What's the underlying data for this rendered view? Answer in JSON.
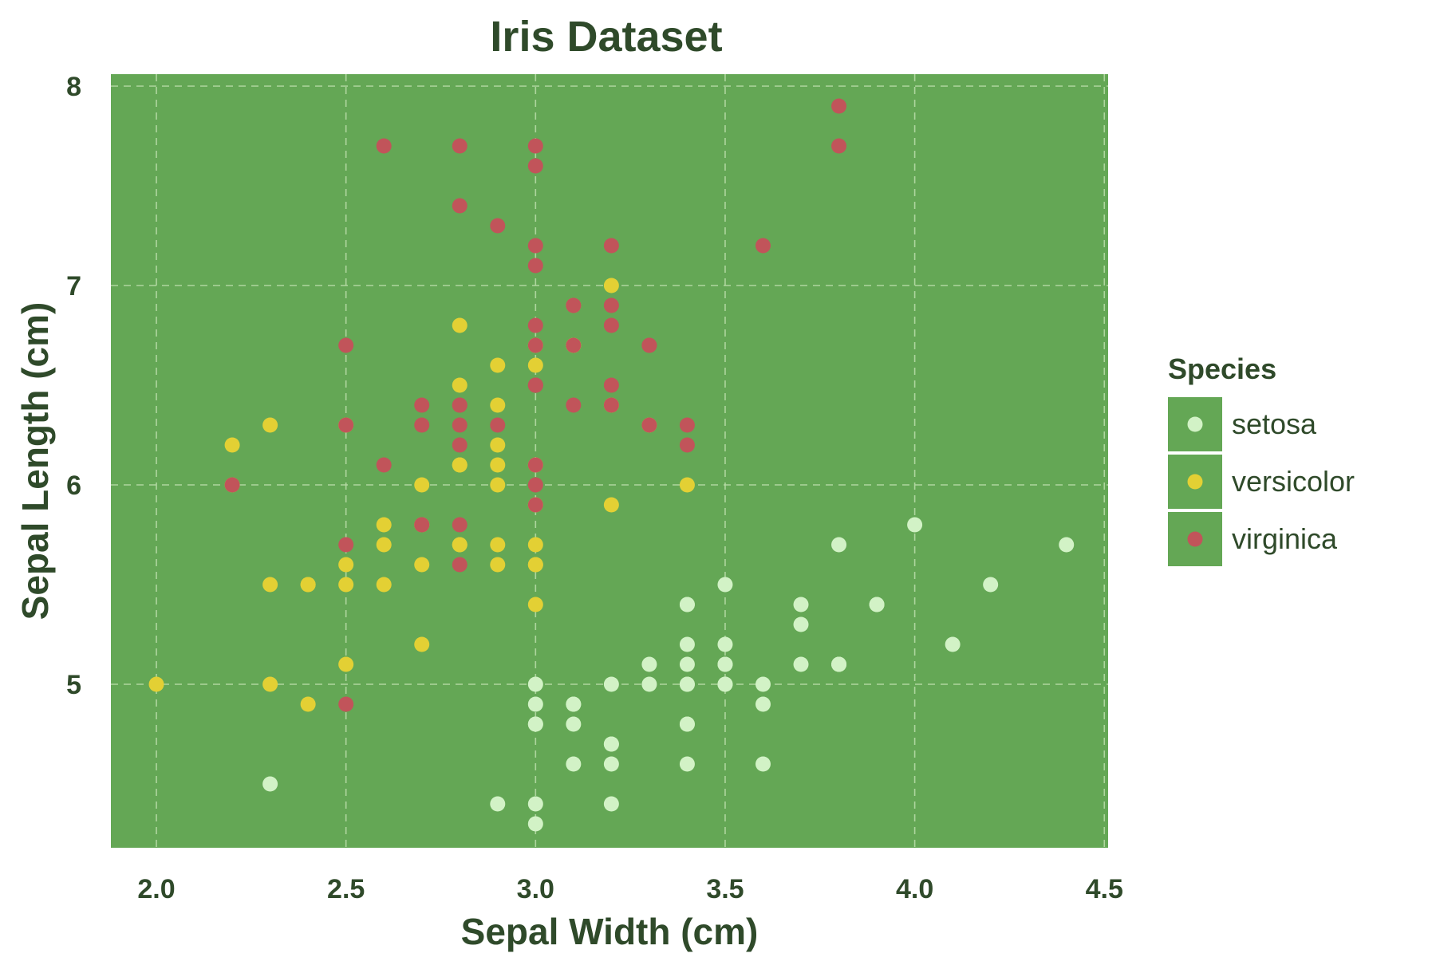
{
  "chart_data": {
    "type": "scatter",
    "title": "Iris Dataset",
    "xlabel": "Sepal Width (cm)",
    "ylabel": "Sepal Length (cm)",
    "xlim": [
      1.88,
      4.51
    ],
    "ylim": [
      4.18,
      8.06
    ],
    "xticks": [
      2.0,
      2.5,
      3.0,
      3.5,
      4.0,
      4.5
    ],
    "xtick_labels": [
      "2.0",
      "2.5",
      "3.0",
      "3.5",
      "4.0",
      "4.5"
    ],
    "yticks": [
      5,
      6,
      7,
      8
    ],
    "ytick_labels": [
      "5",
      "6",
      "7",
      "8"
    ],
    "grid": true,
    "legend": {
      "title": "Species",
      "placement": "right"
    },
    "colors": {
      "panel": "#64a755",
      "grid": "#b7dba6",
      "text": "#2f4a2a"
    },
    "series": [
      {
        "name": "setosa",
        "color": "#d2f2c6",
        "points": [
          [
            3.5,
            5.1
          ],
          [
            3.0,
            4.9
          ],
          [
            3.2,
            4.7
          ],
          [
            3.1,
            4.6
          ],
          [
            3.6,
            5.0
          ],
          [
            3.9,
            5.4
          ],
          [
            3.4,
            4.6
          ],
          [
            3.4,
            5.0
          ],
          [
            2.9,
            4.4
          ],
          [
            3.1,
            4.9
          ],
          [
            3.7,
            5.4
          ],
          [
            3.4,
            4.8
          ],
          [
            3.0,
            4.8
          ],
          [
            3.0,
            4.3
          ],
          [
            4.0,
            5.8
          ],
          [
            4.4,
            5.7
          ],
          [
            3.9,
            5.4
          ],
          [
            3.5,
            5.1
          ],
          [
            3.8,
            5.7
          ],
          [
            3.8,
            5.1
          ],
          [
            3.4,
            5.4
          ],
          [
            3.7,
            5.1
          ],
          [
            3.6,
            4.6
          ],
          [
            3.3,
            5.1
          ],
          [
            3.4,
            4.8
          ],
          [
            3.0,
            5.0
          ],
          [
            3.4,
            5.0
          ],
          [
            3.5,
            5.2
          ],
          [
            3.4,
            5.2
          ],
          [
            3.2,
            4.7
          ],
          [
            3.1,
            4.8
          ],
          [
            3.4,
            5.4
          ],
          [
            4.1,
            5.2
          ],
          [
            4.2,
            5.5
          ],
          [
            3.1,
            4.9
          ],
          [
            3.2,
            5.0
          ],
          [
            3.5,
            5.5
          ],
          [
            3.6,
            4.9
          ],
          [
            3.0,
            4.4
          ],
          [
            3.4,
            5.1
          ],
          [
            3.5,
            5.0
          ],
          [
            2.3,
            4.5
          ],
          [
            3.2,
            4.4
          ],
          [
            3.5,
            5.0
          ],
          [
            3.8,
            5.1
          ],
          [
            3.0,
            4.8
          ],
          [
            3.8,
            5.1
          ],
          [
            3.2,
            4.6
          ],
          [
            3.7,
            5.3
          ],
          [
            3.3,
            5.0
          ]
        ]
      },
      {
        "name": "versicolor",
        "color": "#e3d034",
        "points": [
          [
            3.2,
            7.0
          ],
          [
            3.2,
            6.4
          ],
          [
            3.1,
            6.9
          ],
          [
            2.3,
            5.5
          ],
          [
            2.8,
            6.5
          ],
          [
            2.8,
            5.7
          ],
          [
            3.3,
            6.3
          ],
          [
            2.4,
            4.9
          ],
          [
            2.9,
            6.6
          ],
          [
            2.7,
            5.2
          ],
          [
            2.0,
            5.0
          ],
          [
            3.0,
            5.9
          ],
          [
            2.2,
            6.0
          ],
          [
            2.9,
            6.1
          ],
          [
            2.9,
            5.6
          ],
          [
            3.1,
            6.7
          ],
          [
            3.0,
            5.6
          ],
          [
            2.7,
            5.8
          ],
          [
            2.2,
            6.2
          ],
          [
            2.5,
            5.6
          ],
          [
            3.2,
            5.9
          ],
          [
            2.8,
            6.1
          ],
          [
            2.5,
            6.3
          ],
          [
            2.8,
            6.1
          ],
          [
            2.9,
            6.4
          ],
          [
            3.0,
            6.6
          ],
          [
            2.8,
            6.8
          ],
          [
            3.0,
            6.7
          ],
          [
            2.9,
            6.0
          ],
          [
            2.6,
            5.7
          ],
          [
            2.4,
            5.5
          ],
          [
            2.4,
            5.5
          ],
          [
            2.7,
            5.8
          ],
          [
            2.7,
            6.0
          ],
          [
            3.0,
            5.4
          ],
          [
            3.4,
            6.0
          ],
          [
            3.1,
            6.7
          ],
          [
            2.3,
            6.3
          ],
          [
            3.0,
            5.6
          ],
          [
            2.5,
            5.5
          ],
          [
            2.6,
            5.5
          ],
          [
            3.0,
            6.1
          ],
          [
            2.6,
            5.8
          ],
          [
            2.3,
            5.0
          ],
          [
            2.7,
            5.6
          ],
          [
            3.0,
            5.7
          ],
          [
            2.9,
            5.7
          ],
          [
            2.9,
            6.2
          ],
          [
            2.5,
            5.1
          ],
          [
            2.8,
            5.7
          ]
        ]
      },
      {
        "name": "virginica",
        "color": "#c1545a",
        "points": [
          [
            3.3,
            6.3
          ],
          [
            2.7,
            5.8
          ],
          [
            3.0,
            7.1
          ],
          [
            2.9,
            6.3
          ],
          [
            3.0,
            6.5
          ],
          [
            3.0,
            7.6
          ],
          [
            2.5,
            4.9
          ],
          [
            2.9,
            7.3
          ],
          [
            2.5,
            6.7
          ],
          [
            3.6,
            7.2
          ],
          [
            3.2,
            6.5
          ],
          [
            2.7,
            6.4
          ],
          [
            3.0,
            6.8
          ],
          [
            2.5,
            5.7
          ],
          [
            2.8,
            5.8
          ],
          [
            3.2,
            6.4
          ],
          [
            3.0,
            6.5
          ],
          [
            3.8,
            7.7
          ],
          [
            2.6,
            7.7
          ],
          [
            2.2,
            6.0
          ],
          [
            3.2,
            6.9
          ],
          [
            2.8,
            5.6
          ],
          [
            2.8,
            7.7
          ],
          [
            2.7,
            6.3
          ],
          [
            3.3,
            6.7
          ],
          [
            3.2,
            7.2
          ],
          [
            2.8,
            6.2
          ],
          [
            3.0,
            6.1
          ],
          [
            2.8,
            6.4
          ],
          [
            3.0,
            7.2
          ],
          [
            2.8,
            7.4
          ],
          [
            3.8,
            7.9
          ],
          [
            2.8,
            6.4
          ],
          [
            2.8,
            6.3
          ],
          [
            2.6,
            6.1
          ],
          [
            3.0,
            7.7
          ],
          [
            3.4,
            6.3
          ],
          [
            3.1,
            6.4
          ],
          [
            3.0,
            6.0
          ],
          [
            3.1,
            6.9
          ],
          [
            3.1,
            6.7
          ],
          [
            3.1,
            6.9
          ],
          [
            2.7,
            5.8
          ],
          [
            3.2,
            6.8
          ],
          [
            3.3,
            6.7
          ],
          [
            3.0,
            6.7
          ],
          [
            2.5,
            6.3
          ],
          [
            3.0,
            6.5
          ],
          [
            3.4,
            6.2
          ],
          [
            3.0,
            5.9
          ]
        ]
      }
    ]
  }
}
